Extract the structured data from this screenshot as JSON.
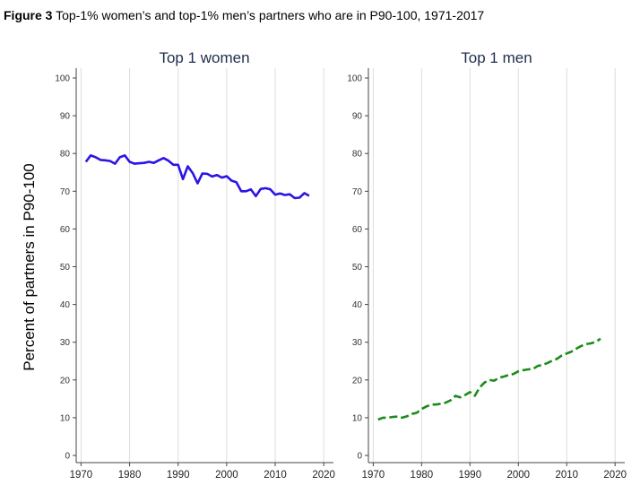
{
  "figure": {
    "label": "Figure 3",
    "caption": "Top-1% women’s and top-1% men’s partners who are in P90-100, 1971-2017"
  },
  "chart_data": [
    {
      "type": "line",
      "title": "Top 1 women",
      "xlabel": "",
      "ylabel": "Percent of partners in P90-100",
      "xlim": [
        1969,
        2022
      ],
      "ylim": [
        0,
        100
      ],
      "xticks": [
        1970,
        1980,
        1990,
        2000,
        2010,
        2020
      ],
      "yticks": [
        0,
        10,
        20,
        30,
        40,
        50,
        60,
        70,
        80,
        90,
        100
      ],
      "grid": "vertical",
      "color": "#2b14e6",
      "line_style": "solid",
      "x": [
        1971,
        1972,
        1973,
        1974,
        1975,
        1976,
        1977,
        1978,
        1979,
        1980,
        1981,
        1982,
        1983,
        1984,
        1985,
        1986,
        1987,
        1988,
        1989,
        1990,
        1991,
        1992,
        1993,
        1994,
        1995,
        1996,
        1997,
        1998,
        1999,
        2000,
        2001,
        2002,
        2003,
        2004,
        2005,
        2006,
        2007,
        2008,
        2009,
        2010,
        2011,
        2012,
        2013,
        2014,
        2015,
        2016,
        2017
      ],
      "y": [
        77.8,
        79.5,
        79.0,
        78.3,
        78.2,
        78.0,
        77.3,
        79.0,
        79.5,
        77.8,
        77.3,
        77.4,
        77.5,
        77.8,
        77.5,
        78.2,
        78.8,
        78.1,
        77.0,
        77.0,
        73.2,
        76.6,
        74.8,
        72.1,
        74.7,
        74.6,
        73.9,
        74.3,
        73.6,
        74.0,
        72.8,
        72.4,
        70.0,
        70.0,
        70.5,
        68.7,
        70.6,
        70.8,
        70.5,
        69.1,
        69.4,
        69.0,
        69.2,
        68.2,
        68.3,
        69.5,
        68.8
      ]
    },
    {
      "type": "line",
      "title": "Top 1 men",
      "xlabel": "",
      "ylabel": "",
      "xlim": [
        1969,
        2022
      ],
      "ylim": [
        0,
        100
      ],
      "xticks": [
        1970,
        1980,
        1990,
        2000,
        2010,
        2020
      ],
      "yticks": [
        0,
        10,
        20,
        30,
        40,
        50,
        60,
        70,
        80,
        90,
        100
      ],
      "grid": "vertical",
      "color": "#1a8c1a",
      "line_style": "dashed",
      "x": [
        1971,
        1972,
        1973,
        1974,
        1975,
        1976,
        1977,
        1978,
        1979,
        1980,
        1981,
        1982,
        1983,
        1984,
        1985,
        1986,
        1987,
        1988,
        1989,
        1990,
        1991,
        1992,
        1993,
        1994,
        1995,
        1996,
        1997,
        1998,
        1999,
        2000,
        2001,
        2002,
        2003,
        2004,
        2005,
        2006,
        2007,
        2008,
        2009,
        2010,
        2011,
        2012,
        2013,
        2014,
        2015,
        2016,
        2017
      ],
      "y": [
        9.5,
        10.0,
        10.0,
        10.2,
        10.3,
        10.0,
        10.4,
        11.0,
        11.3,
        12.3,
        13.0,
        13.5,
        13.5,
        13.7,
        14.0,
        14.6,
        15.8,
        15.4,
        16.0,
        16.8,
        15.8,
        18.0,
        19.3,
        20.0,
        19.8,
        20.6,
        20.9,
        21.3,
        21.6,
        22.3,
        22.6,
        22.8,
        22.9,
        23.7,
        24.0,
        24.5,
        25.1,
        25.6,
        26.5,
        27.0,
        27.5,
        28.3,
        29.0,
        29.5,
        29.7,
        30.1,
        30.9
      ]
    }
  ]
}
